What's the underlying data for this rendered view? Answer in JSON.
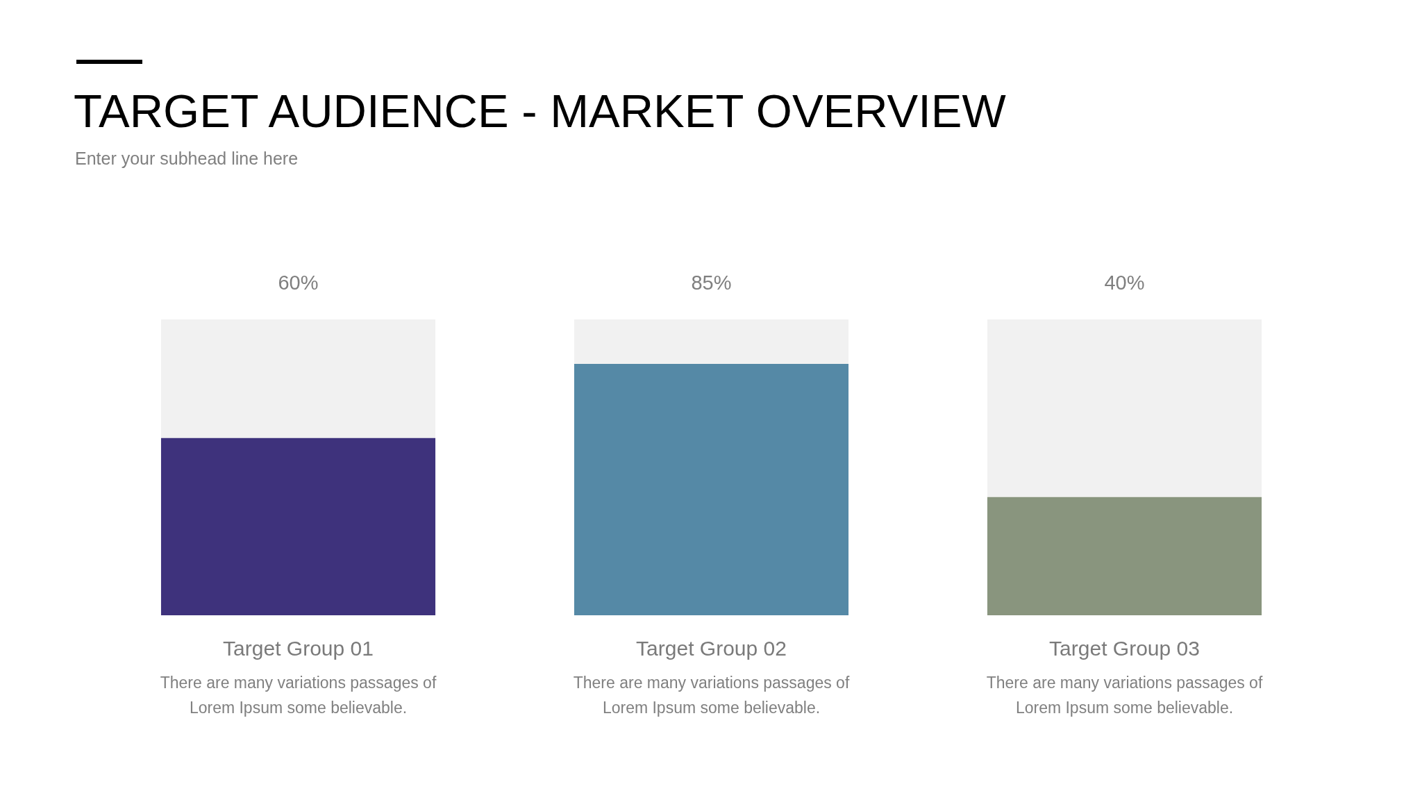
{
  "chart_data": {
    "type": "bar",
    "title": "TARGET AUDIENCE - MARKET OVERVIEW",
    "subtitle": "Enter your subhead line here",
    "categories": [
      "Target Group 01",
      "Target Group 02",
      "Target Group 03"
    ],
    "stacked": true,
    "series": [
      {
        "values": [
          60,
          85,
          40
        ],
        "colors": [
          "#3e327c",
          "#5589a6",
          "#89957e"
        ],
        "value_labels": [
          "60%",
          "85%",
          "40%"
        ]
      },
      {
        "values": [
          40,
          15,
          60
        ],
        "color": "#f1f1f1"
      }
    ],
    "ylim": [
      0,
      100
    ],
    "tick_labels": "x",
    "annotations": [
      "There are many variations passages of Lorem Ipsum some believable.",
      "There are many variations passages of Lorem Ipsum some believable.",
      "There are many variations passages of Lorem Ipsum some believable."
    ]
  }
}
